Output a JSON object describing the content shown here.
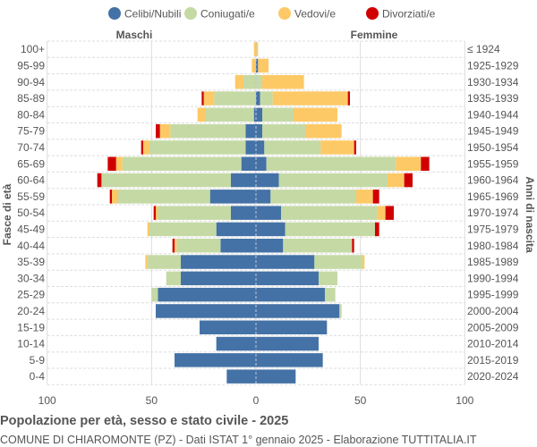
{
  "chart_data": {
    "type": "bar",
    "title": "Popolazione per età, sesso e stato civile - 2025",
    "subtitle": "COMUNE DI CHIAROMONTE (PZ) - Dati ISTAT 1° gennaio 2025 - Elaborazione TUTTITALIA.IT",
    "ylabel_left": "Fasce di età",
    "ylabel_right": "Anni di nascita",
    "left_label": "Maschi",
    "right_label": "Femmine",
    "xlim": [
      -100,
      100
    ],
    "x_ticks": [
      "100",
      "50",
      "0",
      "50",
      "100"
    ],
    "legend_position": "top",
    "grid": true,
    "legend": [
      {
        "name": "Celibi/Nubili",
        "color": "#4472a6"
      },
      {
        "name": "Coniugati/e",
        "color": "#c5d9a5"
      },
      {
        "name": "Vedovi/e",
        "color": "#fdc966"
      },
      {
        "name": "Divorziati/e",
        "color": "#d10000"
      }
    ],
    "age_groups": [
      "100+",
      "95-99",
      "90-94",
      "85-89",
      "80-84",
      "75-79",
      "70-74",
      "65-69",
      "60-64",
      "55-59",
      "50-54",
      "45-49",
      "40-44",
      "35-39",
      "30-34",
      "25-29",
      "20-24",
      "15-19",
      "10-14",
      "5-9",
      "0-4"
    ],
    "birth_years": [
      "≤ 1924",
      "1925-1929",
      "1930-1934",
      "1935-1939",
      "1940-1944",
      "1945-1949",
      "1950-1954",
      "1955-1959",
      "1960-1964",
      "1965-1969",
      "1970-1974",
      "1975-1979",
      "1980-1984",
      "1985-1989",
      "1990-1994",
      "1995-1999",
      "2000-2004",
      "2005-2009",
      "2010-2014",
      "2015-2019",
      "2020-2024"
    ],
    "males": {
      "celibi": [
        0,
        0,
        0,
        0,
        1,
        5,
        5,
        7,
        12,
        22,
        12,
        19,
        17,
        36,
        36,
        47,
        48,
        27,
        19,
        39,
        14
      ],
      "coniugati": [
        0,
        0,
        6,
        20,
        23,
        36,
        46,
        57,
        62,
        44,
        35,
        32,
        21,
        16,
        7,
        3,
        0,
        0,
        0,
        0,
        0
      ],
      "vedovi": [
        1,
        2,
        4,
        5,
        4,
        5,
        3,
        3,
        0,
        3,
        1,
        1,
        1,
        1,
        0,
        0,
        0,
        0,
        0,
        0,
        0
      ],
      "divorziati": [
        0,
        0,
        0,
        1,
        0,
        2,
        1,
        4,
        2,
        1,
        1,
        0,
        1,
        0,
        0,
        0,
        0,
        0,
        0,
        0,
        0
      ]
    },
    "females": {
      "nubili": [
        0,
        1,
        0,
        2,
        3,
        3,
        4,
        5,
        11,
        7,
        12,
        14,
        13,
        28,
        30,
        33,
        40,
        34,
        30,
        32,
        19
      ],
      "coniugate": [
        0,
        0,
        3,
        6,
        15,
        21,
        27,
        62,
        52,
        41,
        46,
        43,
        33,
        23,
        9,
        5,
        1,
        0,
        0,
        0,
        0
      ],
      "vedove": [
        1,
        5,
        20,
        36,
        21,
        17,
        16,
        12,
        8,
        8,
        4,
        0,
        0,
        1,
        0,
        0,
        0,
        0,
        0,
        0,
        0
      ],
      "divorziate": [
        0,
        0,
        0,
        1,
        0,
        0,
        1,
        4,
        4,
        3,
        4,
        2,
        1,
        0,
        0,
        0,
        0,
        0,
        0,
        0,
        0
      ]
    }
  }
}
